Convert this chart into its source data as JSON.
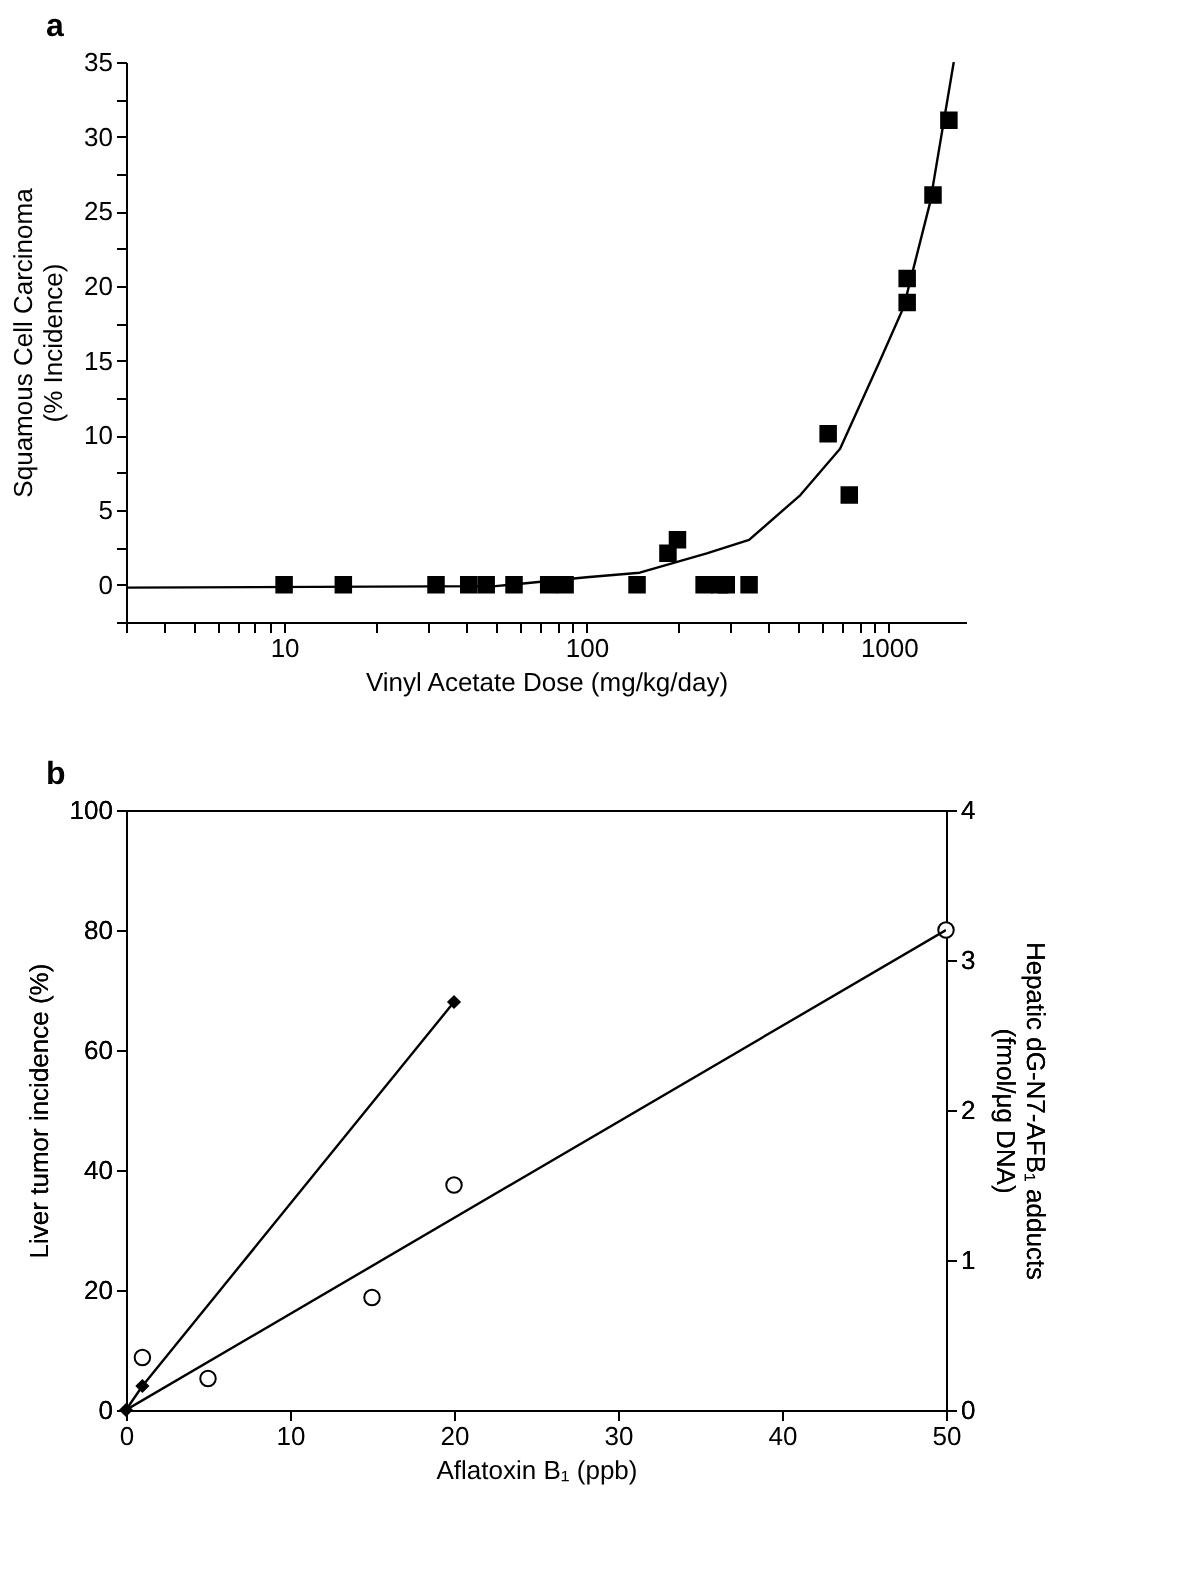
{
  "chart_data": [
    {
      "type": "scatter",
      "title": "a",
      "xlabel": "Vinyl Acetate Dose (mg/kg/day)",
      "ylabel": "Squamous Cell Carcinoma\n(% Incidence)",
      "log": "x",
      "grid": false,
      "xlim": [
        3,
        1800
      ],
      "xticks": [
        {
          "value": 3,
          "label": null
        },
        {
          "value": 4,
          "label": null
        },
        {
          "value": 5,
          "label": null
        },
        {
          "value": 6,
          "label": null
        },
        {
          "value": 7,
          "label": null
        },
        {
          "value": 8,
          "label": null
        },
        {
          "value": 9,
          "label": null
        },
        10,
        {
          "value": 20,
          "label": null
        },
        {
          "value": 30,
          "label": null
        },
        {
          "value": 40,
          "label": null
        },
        {
          "value": 50,
          "label": null
        },
        {
          "value": 60,
          "label": null
        },
        {
          "value": 70,
          "label": null
        },
        {
          "value": 80,
          "label": null
        },
        {
          "value": 90,
          "label": null
        },
        100,
        {
          "value": 200,
          "label": null
        },
        {
          "value": 300,
          "label": null
        },
        {
          "value": 400,
          "label": null
        },
        {
          "value": 500,
          "label": null
        },
        {
          "value": 600,
          "label": null
        },
        {
          "value": 700,
          "label": null
        },
        {
          "value": 800,
          "label": null
        },
        {
          "value": 900,
          "label": null
        },
        1000
      ],
      "ylim": [
        -2.5,
        35
      ],
      "yticks": [
        {
          "value": -2.5,
          "label": null
        },
        0,
        {
          "value": 2.5,
          "label": null
        },
        5,
        {
          "value": 7.5,
          "label": null
        },
        10,
        {
          "value": 12.5,
          "label": null
        },
        15,
        {
          "value": 17.5,
          "label": null
        },
        20,
        {
          "value": 22.5,
          "label": null
        },
        25,
        {
          "value": 27.5,
          "label": null
        },
        30,
        {
          "value": 32.5,
          "label": null
        },
        35
      ],
      "series": [
        {
          "marker": "square",
          "color": "#000000",
          "x": [
            10,
            15.7,
            31.8,
            40.8,
            46.6,
            57.6,
            75,
            85,
            147,
            186,
            200,
            245,
            276,
            290,
            345,
            630,
            740,
            1150,
            1150,
            1400,
            1580
          ],
          "values": [
            0,
            0,
            0,
            0,
            0,
            0,
            0,
            0,
            0,
            2.1,
            3.0,
            0,
            0,
            0,
            0,
            10.1,
            6.0,
            20.5,
            18.9,
            26.1,
            31.1
          ]
        },
        {
          "type": "line",
          "marker": "none",
          "color": "#000000",
          "x": [
            3,
            50,
            100,
            150,
            250,
            345,
            510,
            690,
            930,
            1120,
            1370,
            1640
          ],
          "values": [
            -0.2,
            -0.1,
            0.5,
            0.8,
            2.1,
            3.0,
            6.0,
            9.1,
            14.9,
            18.6,
            25.6,
            35
          ]
        }
      ]
    },
    {
      "type": "line",
      "title": "b",
      "xlabel": "Aflatoxin B₁ (ppb)",
      "ylabel": "Liver tumor incidence (%)",
      "y2label": "Hepatic dG-N7-AFB₁ adducts\n(fmol/μg DNA)",
      "grid": false,
      "xlim": [
        0,
        50
      ],
      "xticks": [
        0,
        10,
        20,
        30,
        40,
        50
      ],
      "ylim": [
        0,
        100
      ],
      "yticks": [
        0,
        20,
        40,
        60,
        80,
        100
      ],
      "y2lim": [
        0,
        4
      ],
      "y2ticks": [
        0,
        1,
        2,
        3,
        4
      ],
      "series": [
        {
          "marker": "diamond",
          "color": "#000000",
          "x": [
            0,
            1,
            20
          ],
          "values": [
            0,
            4,
            68
          ]
        },
        {
          "type": "scatter",
          "marker": "circle",
          "color": "#000000",
          "axis": "y2",
          "x": [
            1,
            5,
            15,
            20,
            50
          ],
          "values": [
            0.35,
            0.21,
            0.75,
            1.5,
            3.2
          ]
        },
        {
          "type": "line",
          "marker": "none",
          "color": "#000000",
          "axis": "y2",
          "x": [
            0,
            50
          ],
          "values": [
            0,
            3.2
          ]
        }
      ]
    }
  ]
}
